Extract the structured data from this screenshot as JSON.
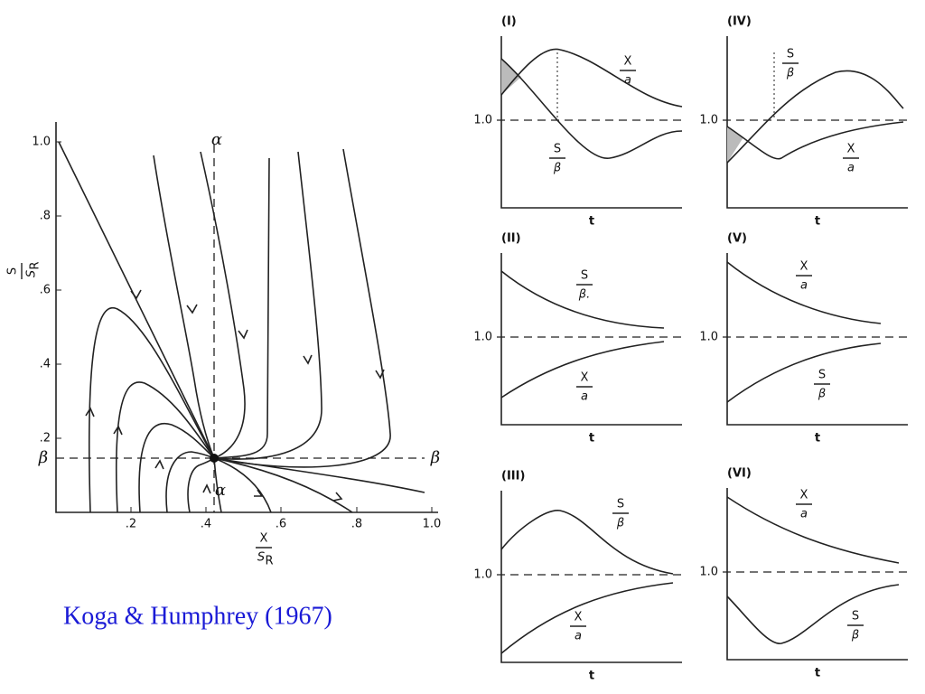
{
  "phase_plot": {
    "y_label": {
      "num": "S",
      "den": "S",
      "den_sub": "R"
    },
    "x_label": {
      "num": "X",
      "den": "S",
      "den_sub": "R"
    },
    "x_ticks": [
      ".2",
      ".4",
      ".6",
      ".8",
      "1.0"
    ],
    "y_ticks": [
      "1.0",
      ".8",
      ".6",
      ".4",
      ".2"
    ],
    "alpha_labels": [
      "α",
      "α"
    ],
    "beta_labels": [
      "β",
      "β"
    ]
  },
  "panels": [
    {
      "label": "(I)",
      "ref_label": "1.0",
      "t_label": "t",
      "curves": [
        {
          "num": "X",
          "den": "a"
        },
        {
          "num": "S",
          "den": "β"
        }
      ]
    },
    {
      "label": "(IV)",
      "ref_label": "1.0",
      "t_label": "t",
      "curves": [
        {
          "num": "S",
          "den": "β"
        },
        {
          "num": "X",
          "den": "a"
        }
      ]
    },
    {
      "label": "(II)",
      "ref_label": "1.0",
      "t_label": "t",
      "curves": [
        {
          "num": "S",
          "den": "β."
        },
        {
          "num": "X",
          "den": "a"
        }
      ]
    },
    {
      "label": "(V)",
      "ref_label": "1.0",
      "t_label": "t",
      "curves": [
        {
          "num": "X",
          "den": "a"
        },
        {
          "num": "S",
          "den": "β"
        }
      ]
    },
    {
      "label": "(III)",
      "ref_label": "1.0",
      "t_label": "t",
      "curves": [
        {
          "num": "S",
          "den": "β"
        },
        {
          "num": "X",
          "den": "a"
        }
      ]
    },
    {
      "label": "(VI)",
      "ref_label": "1.0",
      "t_label": "t",
      "curves": [
        {
          "num": "X",
          "den": "a"
        },
        {
          "num": "S",
          "den": "β"
        }
      ]
    }
  ],
  "caption": "Koga & Humphrey (1967)"
}
